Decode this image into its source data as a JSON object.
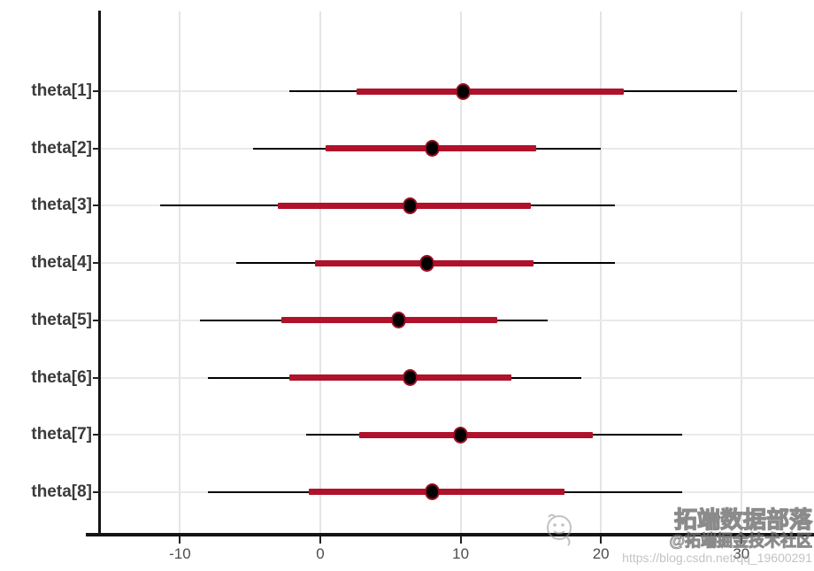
{
  "chart_data": {
    "type": "interval",
    "subtype": "posterior-interval-forest-plot",
    "orientation": "horizontal",
    "title": "",
    "xlabel": "",
    "ylabel": "",
    "grid": true,
    "legend_position": "none",
    "x_ticks": [
      -10,
      0,
      10,
      20,
      30
    ],
    "xlim": [
      -15.7,
      35.2
    ],
    "parameters": [
      "theta[1]",
      "theta[2]",
      "theta[3]",
      "theta[4]",
      "theta[5]",
      "theta[6]",
      "theta[7]",
      "theta[8]"
    ],
    "series": [
      {
        "name": "theta[1]",
        "outer": [
          -2.2,
          29.7
        ],
        "inner": [
          2.6,
          21.6
        ],
        "point": 10.2
      },
      {
        "name": "theta[2]",
        "outer": [
          -4.8,
          20.0
        ],
        "inner": [
          0.4,
          15.4
        ],
        "point": 8.0
      },
      {
        "name": "theta[3]",
        "outer": [
          -11.4,
          21.0
        ],
        "inner": [
          -3.0,
          15.0
        ],
        "point": 6.4
      },
      {
        "name": "theta[4]",
        "outer": [
          -6.0,
          21.0
        ],
        "inner": [
          -0.4,
          15.2
        ],
        "point": 7.6
      },
      {
        "name": "theta[5]",
        "outer": [
          -8.6,
          16.2
        ],
        "inner": [
          -2.8,
          12.6
        ],
        "point": 5.6
      },
      {
        "name": "theta[6]",
        "outer": [
          -8.0,
          18.6
        ],
        "inner": [
          -2.2,
          13.6
        ],
        "point": 6.4
      },
      {
        "name": "theta[7]",
        "outer": [
          -1.0,
          25.8
        ],
        "inner": [
          2.8,
          19.4
        ],
        "point": 10.0
      },
      {
        "name": "theta[8]",
        "outer": [
          -8.0,
          25.8
        ],
        "inner": [
          -0.8,
          17.4
        ],
        "point": 8.0
      }
    ]
  },
  "colors": {
    "inner_interval": "#b0122b",
    "outer_interval": "#000000",
    "point_fill": "#000000",
    "point_ring": "#9c0f24",
    "gridline": "#e4e4e4",
    "axis": "#141414",
    "parameter_label": "#3a3a3a",
    "tick_label": "#4d4d4d"
  },
  "watermark": {
    "line1": "拓端数据部落",
    "line2": "@拓端掘金技术社区",
    "line3": "https://blog.csdn.net/qq_19600291"
  }
}
